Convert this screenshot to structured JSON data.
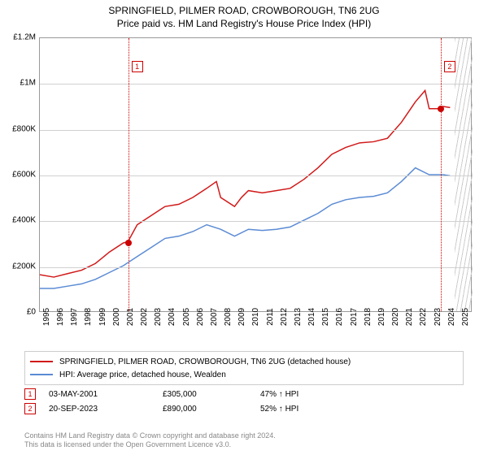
{
  "titles": {
    "line1": "SPRINGFIELD, PILMER ROAD, CROWBOROUGH, TN6 2UG",
    "line2": "Price paid vs. HM Land Registry's House Price Index (HPI)"
  },
  "chart": {
    "type": "line",
    "background_color": "#ffffff",
    "grid_color": "#d0d0d0",
    "border_color": "#999999",
    "ylim": [
      0,
      1200000
    ],
    "ytick_step": 200000,
    "yticks": [
      {
        "v": 0,
        "label": "£0"
      },
      {
        "v": 200000,
        "label": "£200K"
      },
      {
        "v": 400000,
        "label": "£400K"
      },
      {
        "v": 600000,
        "label": "£600K"
      },
      {
        "v": 800000,
        "label": "£800K"
      },
      {
        "v": 1000000,
        "label": "£1M"
      },
      {
        "v": 1200000,
        "label": "£1.2M"
      }
    ],
    "xlim": [
      1995,
      2026
    ],
    "xticks": [
      1995,
      1996,
      1997,
      1998,
      1999,
      2000,
      2001,
      2002,
      2003,
      2004,
      2005,
      2006,
      2007,
      2008,
      2009,
      2010,
      2011,
      2012,
      2013,
      2014,
      2015,
      2016,
      2017,
      2018,
      2019,
      2020,
      2021,
      2022,
      2023,
      2024,
      2025
    ],
    "hatch_from_year": 2024.7,
    "series": [
      {
        "name": "subject",
        "color": "#d11919",
        "line_width": 1.5,
        "points": [
          [
            1995,
            160000
          ],
          [
            1996,
            150000
          ],
          [
            1997,
            165000
          ],
          [
            1998,
            180000
          ],
          [
            1999,
            210000
          ],
          [
            2000,
            260000
          ],
          [
            2001,
            300000
          ],
          [
            2001.33,
            305000
          ],
          [
            2002,
            380000
          ],
          [
            2003,
            420000
          ],
          [
            2004,
            460000
          ],
          [
            2005,
            470000
          ],
          [
            2006,
            500000
          ],
          [
            2007,
            540000
          ],
          [
            2007.7,
            570000
          ],
          [
            2008,
            500000
          ],
          [
            2009,
            460000
          ],
          [
            2009.5,
            500000
          ],
          [
            2010,
            530000
          ],
          [
            2011,
            520000
          ],
          [
            2012,
            530000
          ],
          [
            2013,
            540000
          ],
          [
            2014,
            580000
          ],
          [
            2015,
            630000
          ],
          [
            2016,
            690000
          ],
          [
            2017,
            720000
          ],
          [
            2018,
            740000
          ],
          [
            2019,
            745000
          ],
          [
            2020,
            760000
          ],
          [
            2021,
            830000
          ],
          [
            2022,
            920000
          ],
          [
            2022.7,
            970000
          ],
          [
            2023,
            890000
          ],
          [
            2023.72,
            890000
          ],
          [
            2024,
            900000
          ],
          [
            2024.5,
            895000
          ]
        ]
      },
      {
        "name": "hpi",
        "color": "#5b8bd4",
        "line_width": 1.5,
        "points": [
          [
            1995,
            100000
          ],
          [
            1996,
            100000
          ],
          [
            1997,
            110000
          ],
          [
            1998,
            120000
          ],
          [
            1999,
            140000
          ],
          [
            2000,
            170000
          ],
          [
            2001,
            200000
          ],
          [
            2002,
            240000
          ],
          [
            2003,
            280000
          ],
          [
            2004,
            320000
          ],
          [
            2005,
            330000
          ],
          [
            2006,
            350000
          ],
          [
            2007,
            380000
          ],
          [
            2008,
            360000
          ],
          [
            2009,
            330000
          ],
          [
            2010,
            360000
          ],
          [
            2011,
            355000
          ],
          [
            2012,
            360000
          ],
          [
            2013,
            370000
          ],
          [
            2014,
            400000
          ],
          [
            2015,
            430000
          ],
          [
            2016,
            470000
          ],
          [
            2017,
            490000
          ],
          [
            2018,
            500000
          ],
          [
            2019,
            505000
          ],
          [
            2020,
            520000
          ],
          [
            2021,
            570000
          ],
          [
            2022,
            630000
          ],
          [
            2023,
            600000
          ],
          [
            2024,
            600000
          ],
          [
            2024.5,
            595000
          ]
        ]
      }
    ],
    "transactions": [
      {
        "n": "1",
        "year": 2001.33,
        "value": 305000
      },
      {
        "n": "2",
        "year": 2023.72,
        "value": 890000
      }
    ],
    "marker_box_color": "#cc0000",
    "dot_color": "#cc0000"
  },
  "legend": {
    "rows": [
      {
        "color": "#d11919",
        "label": "SPRINGFIELD, PILMER ROAD, CROWBOROUGH, TN6 2UG (detached house)"
      },
      {
        "color": "#5b8bd4",
        "label": "HPI: Average price, detached house, Wealden"
      }
    ]
  },
  "annotations": {
    "rows": [
      {
        "n": "1",
        "date": "03-MAY-2001",
        "price": "£305,000",
        "pct": "47% ↑ HPI"
      },
      {
        "n": "2",
        "date": "20-SEP-2023",
        "price": "£890,000",
        "pct": "52% ↑ HPI"
      }
    ],
    "col_widths": {
      "date": 140,
      "price": 120,
      "pct": 100
    }
  },
  "footer": {
    "line1": "Contains HM Land Registry data © Crown copyright and database right 2024.",
    "line2": "This data is licensed under the Open Government Licence v3.0."
  }
}
